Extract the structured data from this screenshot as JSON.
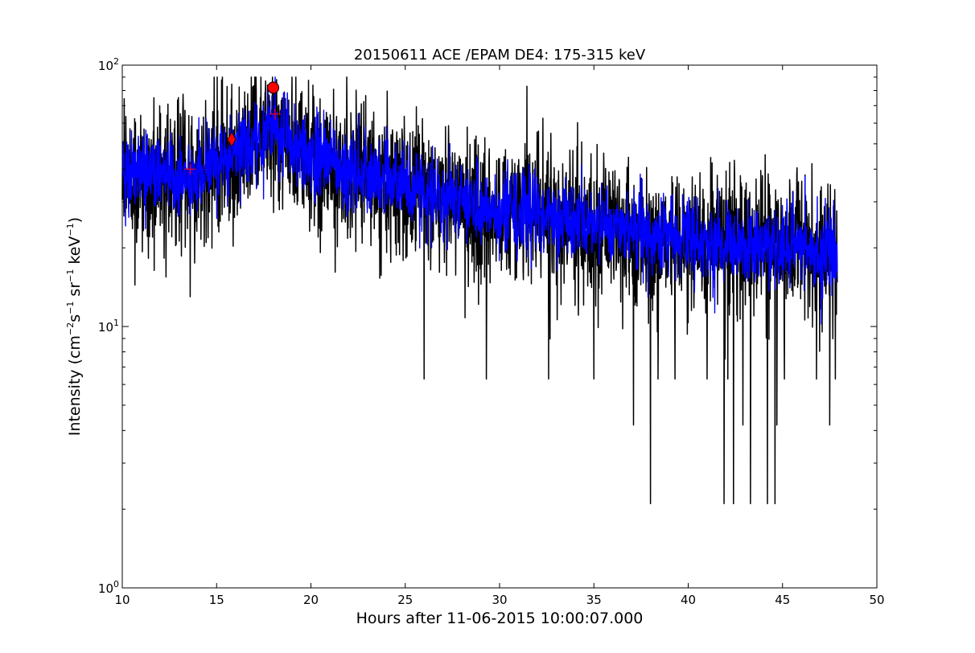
{
  "chart_data": {
    "type": "line",
    "title": "20150611 ACE /EPAM DE4: 175-315 keV",
    "xlabel": "Hours after 11-06-2015 10:00:07.000",
    "ylabel": {
      "prefix": "Intensity (cm",
      "sup1": "−2",
      "mid1": "s",
      "sup2": "−1",
      "mid2": " sr",
      "sup3": "−1",
      "mid3": " keV",
      "sup4": "−1",
      "suffix": ")"
    },
    "xlim": [
      10,
      50
    ],
    "ylim": [
      1,
      100
    ],
    "yscale": "log",
    "grid": false,
    "x_ticks": [
      {
        "value": 10,
        "label": "10"
      },
      {
        "value": 15,
        "label": "15"
      },
      {
        "value": 20,
        "label": "20"
      },
      {
        "value": 25,
        "label": "25"
      },
      {
        "value": 30,
        "label": "30"
      },
      {
        "value": 35,
        "label": "35"
      },
      {
        "value": 40,
        "label": "40"
      },
      {
        "value": 45,
        "label": "45"
      },
      {
        "value": 50,
        "label": "50"
      }
    ],
    "y_ticks": [
      {
        "value": 1,
        "base": "10",
        "exp": "0"
      },
      {
        "value": 10,
        "base": "10",
        "exp": "1"
      },
      {
        "value": 100,
        "base": "10",
        "exp": "2"
      }
    ],
    "series": [
      {
        "color": "#000000",
        "x_range": [
          10.0,
          47.9
        ],
        "trend": [
          [
            10.0,
            40
          ],
          [
            12.0,
            38
          ],
          [
            13.5,
            36
          ],
          [
            15.0,
            42
          ],
          [
            16.5,
            48
          ],
          [
            17.5,
            55
          ],
          [
            18.2,
            58
          ],
          [
            19.0,
            50
          ],
          [
            20.0,
            44
          ],
          [
            22.0,
            40
          ],
          [
            24.0,
            36
          ],
          [
            26.0,
            33
          ],
          [
            28.0,
            30
          ],
          [
            30.0,
            28
          ],
          [
            32.0,
            27
          ],
          [
            34.0,
            25
          ],
          [
            36.0,
            24
          ],
          [
            38.0,
            22
          ],
          [
            40.0,
            22
          ],
          [
            42.0,
            21
          ],
          [
            44.0,
            20
          ],
          [
            46.0,
            20
          ],
          [
            47.9,
            19
          ]
        ],
        "dropouts": [
          [
            13.6,
            13
          ],
          [
            26.0,
            6.3
          ],
          [
            29.3,
            6.3
          ],
          [
            32.6,
            6.3
          ],
          [
            35.0,
            6.3
          ],
          [
            37.1,
            4.2
          ],
          [
            38.0,
            2.1
          ],
          [
            38.4,
            6.3
          ],
          [
            39.3,
            6.3
          ],
          [
            41.0,
            6.3
          ],
          [
            41.9,
            2.1
          ],
          [
            42.1,
            6.3
          ],
          [
            42.4,
            2.1
          ],
          [
            42.9,
            4.2
          ],
          [
            43.3,
            2.1
          ],
          [
            44.2,
            2.1
          ],
          [
            44.6,
            2.1
          ],
          [
            44.7,
            4.2
          ],
          [
            45.1,
            6.3
          ],
          [
            46.8,
            6.3
          ],
          [
            47.5,
            4.2
          ],
          [
            47.8,
            6.3
          ]
        ]
      },
      {
        "color": "#0000ff",
        "x_range": [
          10.0,
          47.9
        ],
        "trend": [
          [
            10.0,
            40
          ],
          [
            12.0,
            38
          ],
          [
            13.5,
            36
          ],
          [
            15.0,
            42
          ],
          [
            16.5,
            48
          ],
          [
            17.5,
            55
          ],
          [
            18.2,
            58
          ],
          [
            19.0,
            50
          ],
          [
            20.0,
            44
          ],
          [
            22.0,
            40
          ],
          [
            24.0,
            36
          ],
          [
            26.0,
            33
          ],
          [
            28.0,
            30
          ],
          [
            30.0,
            28
          ],
          [
            32.0,
            27
          ],
          [
            34.0,
            25
          ],
          [
            36.0,
            24
          ],
          [
            38.0,
            22
          ],
          [
            40.0,
            22
          ],
          [
            42.0,
            21
          ],
          [
            44.0,
            20
          ],
          [
            46.0,
            20
          ],
          [
            47.9,
            19
          ]
        ]
      }
    ],
    "markers": [
      {
        "shape": "circle",
        "x": 18.0,
        "y": 82,
        "color": "#ff0000"
      },
      {
        "shape": "diamond",
        "x": 15.8,
        "y": 52,
        "color": "#ff0000"
      },
      {
        "shape": "plus",
        "x": 13.6,
        "y": 40,
        "color": "#ff0000"
      },
      {
        "shape": "plus",
        "x": 18.1,
        "y": 65,
        "color": "#ff0000"
      }
    ]
  }
}
